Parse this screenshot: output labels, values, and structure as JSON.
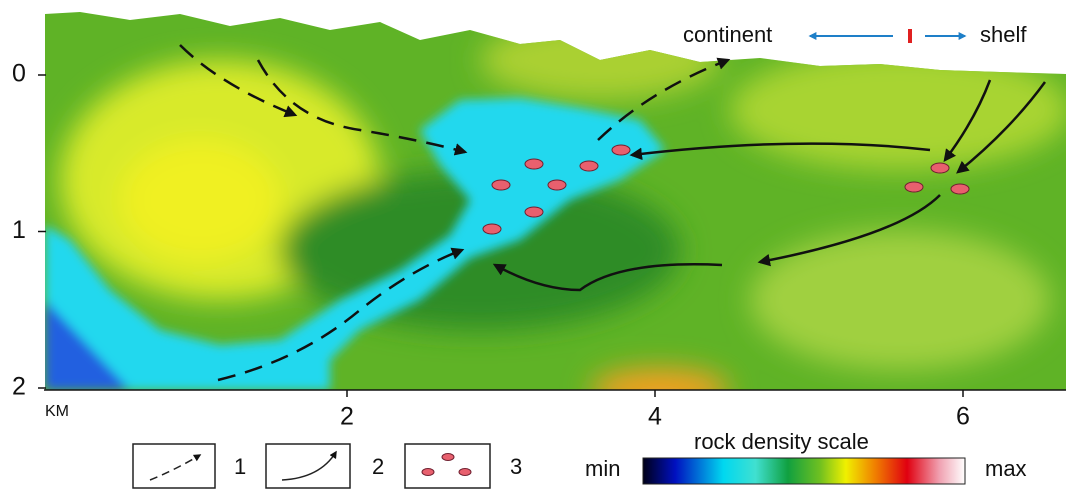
{
  "axes": {
    "y_ticks": [
      0,
      1,
      2
    ],
    "x_ticks": [
      2,
      4,
      6
    ],
    "x_unit": "KM"
  },
  "annotations": {
    "left": "continent",
    "right": "shelf"
  },
  "legend": {
    "items": [
      {
        "label": "1"
      },
      {
        "label": "2"
      },
      {
        "label": "3"
      }
    ]
  },
  "density_scale": {
    "title": "rock density scale",
    "min": "min",
    "max": "max"
  }
}
